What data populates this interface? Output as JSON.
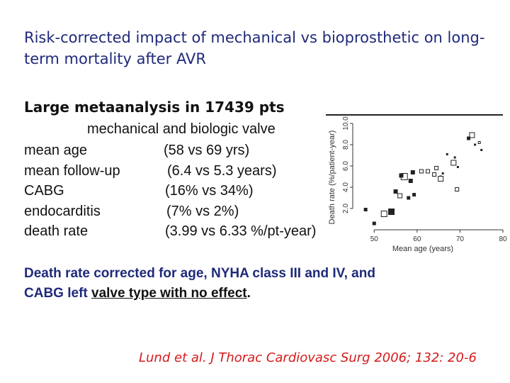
{
  "slide": {
    "title": "Risk-corrected impact of mechanical vs bioprosthetic on long-term mortality after AVR",
    "subtitle": "Large metaanalysis in 17439 pts",
    "table_header": "mechanical and biologic valve",
    "rows": [
      {
        "label": "mean age",
        "value": "(58 vs 69 yrs)"
      },
      {
        "label": "mean follow-up",
        "value": "(6.4 vs 5.3 years)"
      },
      {
        "label": "CABG",
        "value": "(16% vs 34%)"
      },
      {
        "label": "endocarditis",
        "value": "(7% vs 2%)"
      },
      {
        "label": "death rate",
        "value": "(3.99 vs 6.33 %/pt-year)"
      }
    ],
    "conclusion": {
      "part1": "Death rate corrected for age, NYHA class III and IV, and",
      "part2": "CABG left",
      "part3": "valve type with no effect",
      "part4": "."
    },
    "citation": "Lund et al. J Thorac Cardiovasc Surg 2006; 132: 20-6"
  },
  "chart_data": {
    "type": "scatter",
    "xlabel": "Mean age (years)",
    "ylabel": "Death rate (%/patient-year)",
    "xlim": [
      45,
      80
    ],
    "ylim": [
      0,
      10
    ],
    "xticks": [
      50,
      60,
      70,
      80
    ],
    "yticks": [
      "2.0",
      "4.0",
      "6.0",
      "8.0",
      "10.0"
    ],
    "points": [
      {
        "x": 72.8,
        "y": 8.9,
        "style": "hollow",
        "size": 7
      },
      {
        "x": 72.0,
        "y": 8.6,
        "style": "filled",
        "size": 5
      },
      {
        "x": 74.5,
        "y": 8.2,
        "style": "hollow",
        "size": 3
      },
      {
        "x": 73.5,
        "y": 8.0,
        "style": "filled",
        "size": 3
      },
      {
        "x": 75.0,
        "y": 7.5,
        "style": "filled",
        "size": 3
      },
      {
        "x": 67.0,
        "y": 7.1,
        "style": "filled",
        "size": 3
      },
      {
        "x": 68.5,
        "y": 6.3,
        "style": "hollow",
        "size": 7
      },
      {
        "x": 68.8,
        "y": 6.8,
        "style": "filled",
        "size": 3
      },
      {
        "x": 69.5,
        "y": 5.9,
        "style": "filled",
        "size": 3
      },
      {
        "x": 64.5,
        "y": 5.8,
        "style": "hollow",
        "size": 5
      },
      {
        "x": 61.0,
        "y": 5.5,
        "style": "hollow",
        "size": 5
      },
      {
        "x": 62.5,
        "y": 5.5,
        "style": "hollow",
        "size": 5
      },
      {
        "x": 64.0,
        "y": 5.2,
        "style": "hollow",
        "size": 5
      },
      {
        "x": 66.0,
        "y": 5.3,
        "style": "filled",
        "size": 3
      },
      {
        "x": 65.5,
        "y": 5.0,
        "style": "filled",
        "size": 3
      },
      {
        "x": 65.5,
        "y": 4.8,
        "style": "hollow",
        "size": 7
      },
      {
        "x": 57.0,
        "y": 5.0,
        "style": "hollow",
        "size": 9
      },
      {
        "x": 59.0,
        "y": 5.4,
        "style": "filled",
        "size": 6
      },
      {
        "x": 56.3,
        "y": 5.1,
        "style": "filled",
        "size": 6
      },
      {
        "x": 58.5,
        "y": 4.6,
        "style": "filled",
        "size": 6
      },
      {
        "x": 55.0,
        "y": 3.6,
        "style": "filled",
        "size": 6
      },
      {
        "x": 56.0,
        "y": 3.2,
        "style": "hollow",
        "size": 6
      },
      {
        "x": 58.0,
        "y": 3.0,
        "style": "filled",
        "size": 5
      },
      {
        "x": 59.3,
        "y": 3.3,
        "style": "filled",
        "size": 5
      },
      {
        "x": 69.3,
        "y": 3.8,
        "style": "hollow",
        "size": 5
      },
      {
        "x": 48.0,
        "y": 1.9,
        "style": "filled",
        "size": 5
      },
      {
        "x": 52.3,
        "y": 1.5,
        "style": "hollow",
        "size": 8
      },
      {
        "x": 54.0,
        "y": 1.7,
        "style": "filled",
        "size": 9
      },
      {
        "x": 50.0,
        "y": 0.6,
        "style": "filled",
        "size": 5
      }
    ]
  }
}
